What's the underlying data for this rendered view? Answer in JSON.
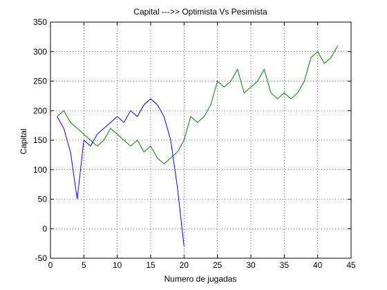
{
  "chart_data": {
    "type": "line",
    "title": "Capital --->>  Optimista Vs Pesimista",
    "xlabel": "Numero de jugadas",
    "ylabel": "Capital",
    "xlim": [
      0,
      45
    ],
    "ylim": [
      -50,
      350
    ],
    "xticks": [
      0,
      5,
      10,
      15,
      20,
      25,
      30,
      35,
      40,
      45
    ],
    "yticks": [
      -50,
      0,
      50,
      100,
      150,
      200,
      250,
      300,
      350
    ],
    "grid": true,
    "series": [
      {
        "color": "#0000ff",
        "x": [
          1,
          2,
          3,
          4,
          5,
          6,
          7,
          8,
          9,
          10,
          11,
          12,
          13,
          14,
          15,
          16,
          17,
          18,
          19,
          20
        ],
        "y": [
          190,
          170,
          130,
          50,
          150,
          140,
          160,
          170,
          180,
          190,
          180,
          200,
          190,
          210,
          220,
          210,
          190,
          150,
          70,
          -30
        ]
      },
      {
        "color": "#008000",
        "x": [
          1,
          2,
          3,
          4,
          5,
          6,
          7,
          8,
          9,
          10,
          11,
          12,
          13,
          14,
          15,
          16,
          17,
          18,
          19,
          20,
          21,
          22,
          23,
          24,
          25,
          26,
          27,
          28,
          29,
          30,
          31,
          32,
          33,
          34,
          35,
          36,
          37,
          38,
          39,
          40,
          41,
          42,
          43
        ],
        "y": [
          190,
          200,
          180,
          170,
          160,
          150,
          140,
          150,
          170,
          160,
          150,
          140,
          150,
          130,
          140,
          120,
          110,
          120,
          130,
          150,
          190,
          180,
          190,
          210,
          250,
          240,
          250,
          270,
          230,
          240,
          250,
          270,
          230,
          220,
          230,
          220,
          230,
          250,
          290,
          300,
          280,
          290,
          310
        ]
      }
    ]
  }
}
